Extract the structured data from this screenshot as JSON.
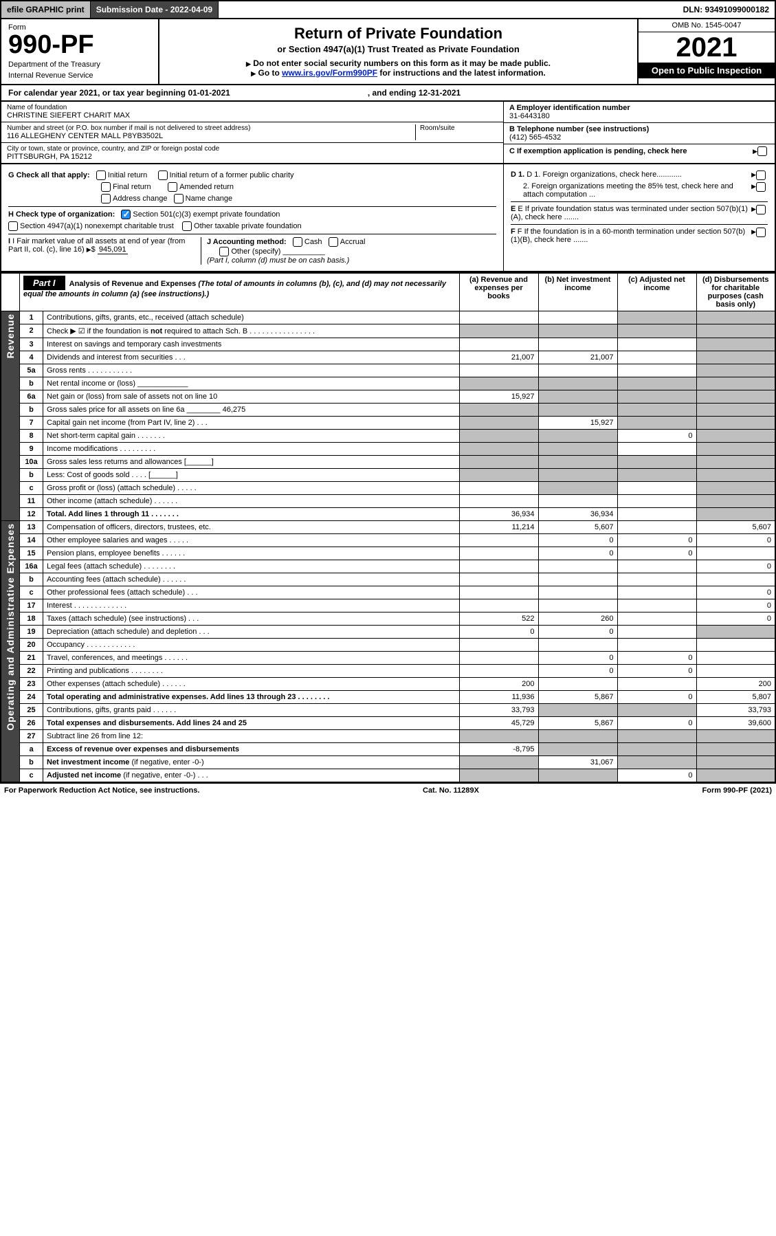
{
  "topbar": {
    "efile": "efile GRAPHIC print",
    "submission_label": "Submission Date - 2022-04-09",
    "dln": "DLN: 93491099000182"
  },
  "header": {
    "form_label": "Form",
    "form_no": "990-PF",
    "dept1": "Department of the Treasury",
    "dept2": "Internal Revenue Service",
    "title": "Return of Private Foundation",
    "subtitle": "or Section 4947(a)(1) Trust Treated as Private Foundation",
    "warn1": "Do not enter social security numbers on this form as it may be made public.",
    "warn2_a": "Go to ",
    "warn2_link": "www.irs.gov/Form990PF",
    "warn2_b": " for instructions and the latest information.",
    "omb": "OMB No. 1545-0047",
    "year": "2021",
    "open": "Open to Public Inspection"
  },
  "calrow": {
    "a": "For calendar year 2021, or tax year beginning 01-01-2021",
    "b": ", and ending 12-31-2021"
  },
  "info": {
    "name_lbl": "Name of foundation",
    "name_val": "CHRISTINE SIEFERT CHARIT MAX",
    "addr_lbl": "Number and street (or P.O. box number if mail is not delivered to street address)",
    "addr_val": "116 ALLEGHENY CENTER MALL P8YB3502L",
    "room_lbl": "Room/suite",
    "city_lbl": "City or town, state or province, country, and ZIP or foreign postal code",
    "city_val": "PITTSBURGH, PA  15212",
    "a_lbl": "A Employer identification number",
    "a_val": "31-6443180",
    "b_lbl": "B Telephone number (see instructions)",
    "b_val": "(412) 565-4532",
    "c_lbl": "C If exemption application is pending, check here"
  },
  "checks": {
    "g": "G Check all that apply:",
    "g1": "Initial return",
    "g2": "Initial return of a former public charity",
    "g3": "Final return",
    "g4": "Amended return",
    "g5": "Address change",
    "g6": "Name change",
    "h": "H Check type of organization:",
    "h1": "Section 501(c)(3) exempt private foundation",
    "h2": "Section 4947(a)(1) nonexempt charitable trust",
    "h3": "Other taxable private foundation",
    "i": "I Fair market value of all assets at end of year (from Part II, col. (c), line 16)",
    "i_val": "945,091",
    "j": "J Accounting method:",
    "j1": "Cash",
    "j2": "Accrual",
    "j3": "Other (specify)",
    "j_note": "(Part I, column (d) must be on cash basis.)",
    "d1": "D 1. Foreign organizations, check here............",
    "d2": "2. Foreign organizations meeting the 85% test, check here and attach computation ...",
    "e": "E  If private foundation status was terminated under section 507(b)(1)(A), check here .......",
    "f": "F  If the foundation is in a 60-month termination under section 507(b)(1)(B), check here ......."
  },
  "part1": {
    "label": "Part I",
    "title": "Analysis of Revenue and Expenses",
    "title_note": " (The total of amounts in columns (b), (c), and (d) may not necessarily equal the amounts in column (a) (see instructions).)",
    "col_a": "(a)  Revenue and expenses per books",
    "col_b": "(b)  Net investment income",
    "col_c": "(c)  Adjusted net income",
    "col_d": "(d)  Disbursements for charitable purposes (cash basis only)",
    "side_rev": "Revenue",
    "side_exp": "Operating and Administrative Expenses"
  },
  "rows": [
    {
      "n": "1",
      "t": "Contributions, gifts, grants, etc., received (attach schedule)",
      "a": "",
      "b": "",
      "c": "s",
      "d": "s"
    },
    {
      "n": "2",
      "t": "Check ▶ ☑ if the foundation is <b>not</b> required to attach Sch. B   .  .  .  .  .  .  .  .  .  .  .  .  .  .  .  .",
      "a": "s",
      "b": "s",
      "c": "s",
      "d": "s"
    },
    {
      "n": "3",
      "t": "Interest on savings and temporary cash investments",
      "a": "",
      "b": "",
      "c": "",
      "d": "s"
    },
    {
      "n": "4",
      "t": "Dividends and interest from securities   .   .   .",
      "a": "21,007",
      "b": "21,007",
      "c": "",
      "d": "s"
    },
    {
      "n": "5a",
      "t": "Gross rents    .   .   .   .   .   .   .   .   .   .   .",
      "a": "",
      "b": "",
      "c": "",
      "d": "s"
    },
    {
      "n": "b",
      "t": "Net rental income or (loss)  ____________",
      "a": "s",
      "b": "s",
      "c": "s",
      "d": "s"
    },
    {
      "n": "6a",
      "t": "Net gain or (loss) from sale of assets not on line 10",
      "a": "15,927",
      "b": "s",
      "c": "s",
      "d": "s"
    },
    {
      "n": "b",
      "t": "Gross sales price for all assets on line 6a ________ 46,275",
      "a": "s",
      "b": "s",
      "c": "s",
      "d": "s"
    },
    {
      "n": "7",
      "t": "Capital gain net income (from Part IV, line 2)   .   .   .",
      "a": "s",
      "b": "15,927",
      "c": "s",
      "d": "s"
    },
    {
      "n": "8",
      "t": "Net short-term capital gain   .   .   .   .   .   .   .",
      "a": "s",
      "b": "s",
      "c": "0",
      "d": "s"
    },
    {
      "n": "9",
      "t": "Income modifications   .   .   .   .   .   .   .   .   .",
      "a": "s",
      "b": "s",
      "c": "",
      "d": "s"
    },
    {
      "n": "10a",
      "t": "Gross sales less returns and allowances  [______]",
      "a": "s",
      "b": "s",
      "c": "s",
      "d": "s"
    },
    {
      "n": "b",
      "t": "Less: Cost of goods sold   .   .   .   .   [______]",
      "a": "s",
      "b": "s",
      "c": "s",
      "d": "s"
    },
    {
      "n": "c",
      "t": "Gross profit or (loss) (attach schedule)   .   .   .   .   .",
      "a": "",
      "b": "s",
      "c": "",
      "d": "s"
    },
    {
      "n": "11",
      "t": "Other income (attach schedule)   .   .   .   .   .   .",
      "a": "",
      "b": "",
      "c": "",
      "d": "s"
    },
    {
      "n": "12",
      "t": "<b>Total.</b> Add lines 1 through 11   .   .   .   .   .   .   .",
      "a": "36,934",
      "b": "36,934",
      "c": "",
      "d": "s",
      "bold": true
    },
    {
      "n": "13",
      "t": "Compensation of officers, directors, trustees, etc.",
      "a": "11,214",
      "b": "5,607",
      "c": "",
      "d": "5,607"
    },
    {
      "n": "14",
      "t": "Other employee salaries and wages   .   .   .   .   .",
      "a": "",
      "b": "0",
      "c": "0",
      "d": "0"
    },
    {
      "n": "15",
      "t": "Pension plans, employee benefits   .   .   .   .   .   .",
      "a": "",
      "b": "0",
      "c": "0",
      "d": ""
    },
    {
      "n": "16a",
      "t": "Legal fees (attach schedule)   .   .   .   .   .   .   .   .",
      "a": "",
      "b": "",
      "c": "",
      "d": "0"
    },
    {
      "n": "b",
      "t": "Accounting fees (attach schedule)   .   .   .   .   .   .",
      "a": "",
      "b": "",
      "c": "",
      "d": ""
    },
    {
      "n": "c",
      "t": "Other professional fees (attach schedule)   .   .   .",
      "a": "",
      "b": "",
      "c": "",
      "d": "0"
    },
    {
      "n": "17",
      "t": "Interest   .   .   .   .   .   .   .   .   .   .   .   .   .",
      "a": "",
      "b": "",
      "c": "",
      "d": "0"
    },
    {
      "n": "18",
      "t": "Taxes (attach schedule) (see instructions)   .   .   .",
      "a": "522",
      "b": "260",
      "c": "",
      "d": "0"
    },
    {
      "n": "19",
      "t": "Depreciation (attach schedule) and depletion   .   .   .",
      "a": "0",
      "b": "0",
      "c": "",
      "d": "s"
    },
    {
      "n": "20",
      "t": "Occupancy   .   .   .   .   .   .   .   .   .   .   .   .",
      "a": "",
      "b": "",
      "c": "",
      "d": ""
    },
    {
      "n": "21",
      "t": "Travel, conferences, and meetings   .   .   .   .   .   .",
      "a": "",
      "b": "0",
      "c": "0",
      "d": ""
    },
    {
      "n": "22",
      "t": "Printing and publications   .   .   .   .   .   .   .   .",
      "a": "",
      "b": "0",
      "c": "0",
      "d": ""
    },
    {
      "n": "23",
      "t": "Other expenses (attach schedule)   .   .   .   .   .   .",
      "a": "200",
      "b": "",
      "c": "",
      "d": "200"
    },
    {
      "n": "24",
      "t": "<b>Total operating and administrative expenses.</b> Add lines 13 through 23   .   .   .   .   .   .   .   .",
      "a": "11,936",
      "b": "5,867",
      "c": "0",
      "d": "5,807",
      "bold": true
    },
    {
      "n": "25",
      "t": "Contributions, gifts, grants paid   .   .   .   .   .   .",
      "a": "33,793",
      "b": "s",
      "c": "s",
      "d": "33,793"
    },
    {
      "n": "26",
      "t": "<b>Total expenses and disbursements.</b> Add lines 24 and 25",
      "a": "45,729",
      "b": "5,867",
      "c": "0",
      "d": "39,600",
      "bold": true
    },
    {
      "n": "27",
      "t": "Subtract line 26 from line 12:",
      "a": "s",
      "b": "s",
      "c": "s",
      "d": "s"
    },
    {
      "n": "a",
      "t": "<b>Excess of revenue over expenses and disbursements</b>",
      "a": "-8,795",
      "b": "s",
      "c": "s",
      "d": "s"
    },
    {
      "n": "b",
      "t": "<b>Net investment income</b> (if negative, enter -0-)",
      "a": "s",
      "b": "31,067",
      "c": "s",
      "d": "s"
    },
    {
      "n": "c",
      "t": "<b>Adjusted net income</b> (if negative, enter -0-)   .   .   .",
      "a": "s",
      "b": "s",
      "c": "0",
      "d": "s"
    }
  ],
  "footer": {
    "left": "For Paperwork Reduction Act Notice, see instructions.",
    "mid": "Cat. No. 11289X",
    "right": "Form 990-PF (2021)"
  }
}
